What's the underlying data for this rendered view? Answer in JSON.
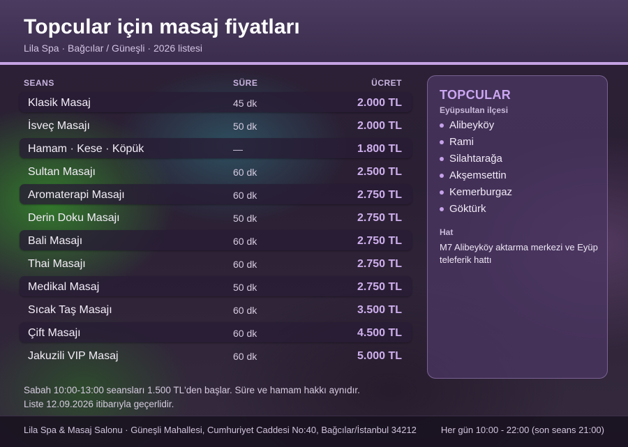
{
  "header": {
    "title": "Topcular için masaj fiyatları",
    "subtitle": "Lila Spa · Bağcılar / Güneşli · 2026 listesi"
  },
  "table": {
    "columns": {
      "name": "SEANS",
      "duration": "SÜRE",
      "price": "ÜCRET"
    },
    "rows": [
      {
        "name": "Klasik Masaj",
        "duration": "45 dk",
        "price": "2.000 TL"
      },
      {
        "name": "İsveç Masajı",
        "duration": "50 dk",
        "price": "2.000 TL"
      },
      {
        "name": "Hamam · Kese · Köpük",
        "duration": "—",
        "price": "1.800 TL"
      },
      {
        "name": "Sultan Masajı",
        "duration": "60 dk",
        "price": "2.500 TL"
      },
      {
        "name": "Aromaterapi Masajı",
        "duration": "60 dk",
        "price": "2.750 TL"
      },
      {
        "name": "Derin Doku Masajı",
        "duration": "50 dk",
        "price": "2.750 TL"
      },
      {
        "name": "Bali Masajı",
        "duration": "60 dk",
        "price": "2.750 TL"
      },
      {
        "name": "Thai Masajı",
        "duration": "60 dk",
        "price": "2.750 TL"
      },
      {
        "name": "Medikal Masaj",
        "duration": "50 dk",
        "price": "2.750 TL"
      },
      {
        "name": "Sıcak Taş Masajı",
        "duration": "60 dk",
        "price": "3.500 TL"
      },
      {
        "name": "Çift Masajı",
        "duration": "60 dk",
        "price": "4.500 TL"
      },
      {
        "name": "Jakuzili VIP Masaj",
        "duration": "60 dk",
        "price": "5.000 TL"
      }
    ]
  },
  "notes": {
    "line1": "Sabah 10:00-13:00 seansları 1.500 TL'den başlar. Süre ve hamam hakkı aynıdır.",
    "line2": "Liste 12.09.2026 itibarıyla geçerlidir."
  },
  "sidebar": {
    "title": "TOPCULAR",
    "subtitle": "Eyüpsultan ilçesi",
    "neighborhoods": [
      "Alibeyköy",
      "Rami",
      "Silahtarağa",
      "Akşemsettin",
      "Kemerburgaz",
      "Göktürk"
    ],
    "transit_label": "Hat",
    "transit_text": "M7 Alibeyköy aktarma merkezi ve Eyüp teleferik hattı"
  },
  "footer": {
    "address": "Lila Spa & Masaj Salonu · Güneşli Mahallesi, Cumhuriyet Caddesi No:40, Bağcılar/İstanbul 34212",
    "hours": "Her gün 10:00 - 22:00 (son seans 21:00)"
  },
  "colors": {
    "accent": "#c5a3e3",
    "price": "#cfb0ee",
    "header_bg": "#43345a"
  }
}
